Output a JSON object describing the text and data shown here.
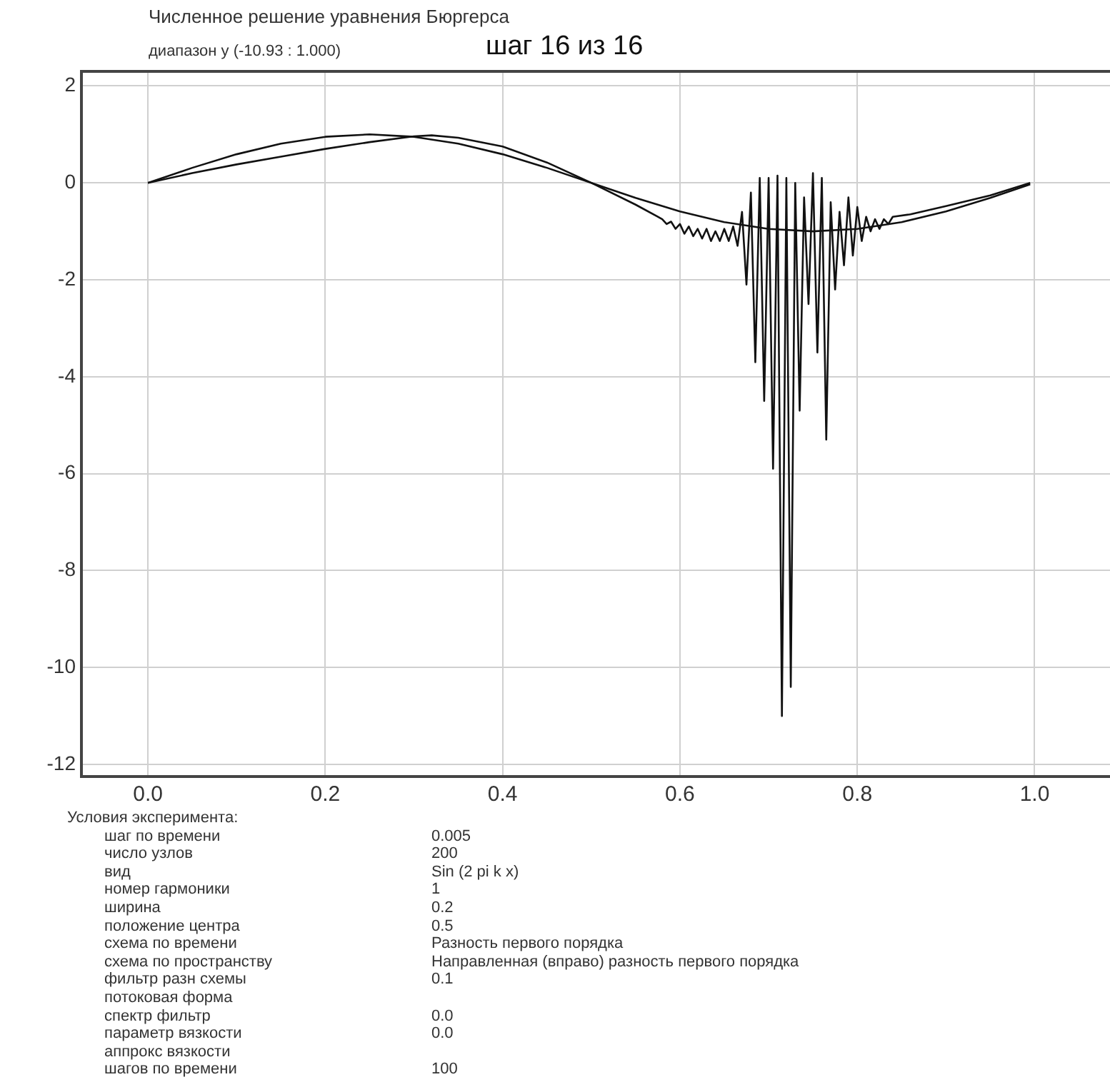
{
  "chart_data": {
    "type": "line",
    "title": "Численное решение уравнения Бюргерса",
    "subtitle": "шаг 16 из 16",
    "annotations": [
      "диапазон у (-10.93 : 1.000)",
      "Условия эксперимента:",
      "шаг по времени\t0.005",
      "число узлов\t200",
      "вид\tSin (2 pi k x)",
      "номер гармоники\t1",
      "ширина\t0.2",
      "положение центра\t0.5",
      "схема по времени\tРазность первого порядка",
      "схема по пространству\tНаправленная (вправо) разность первого порядка",
      "фильтр разн схемы\t0.1",
      "потоковая форма\t",
      "спектр фильтр\t0.0",
      "параметр вязкости\t0.0",
      "аппрокс вязкости\t",
      "шагов по времени\t100"
    ],
    "xlim": [
      -0.075,
      1.085
    ],
    "xticks": [
      {
        "value": 0,
        "label": "0.0"
      },
      0.2,
      0.4,
      0.6,
      0.8,
      {
        "value": 1,
        "label": "1.0"
      }
    ],
    "ylim": [
      -12.25,
      2.3
    ],
    "yticks": [
      2,
      0,
      -2,
      -4,
      -6,
      -8,
      -10,
      -12
    ],
    "grid": true,
    "marker": "none",
    "line_style": "solid",
    "series": [
      {
        "color": "#111111",
        "x": [
          0,
          0.05,
          0.1,
          0.15,
          0.2,
          0.25,
          0.3,
          0.35,
          0.4,
          0.45,
          0.5,
          0.55,
          0.6,
          0.65,
          0.7,
          0.75,
          0.8,
          0.85,
          0.9,
          0.95,
          0.995
        ],
        "values": [
          0,
          0.31,
          0.59,
          0.81,
          0.95,
          1.0,
          0.95,
          0.81,
          0.59,
          0.31,
          0,
          -0.31,
          -0.59,
          -0.81,
          -0.95,
          -1.0,
          -0.95,
          -0.81,
          -0.59,
          -0.31,
          -0.03
        ]
      },
      {
        "color": "#111111",
        "x": [
          0,
          0.05,
          0.1,
          0.15,
          0.2,
          0.25,
          0.3,
          0.32,
          0.35,
          0.4,
          0.45,
          0.5,
          0.55,
          0.575,
          0.58,
          0.585,
          0.59,
          0.595,
          0.6,
          0.605,
          0.61,
          0.615,
          0.62,
          0.625,
          0.63,
          0.635,
          0.64,
          0.645,
          0.65,
          0.655,
          0.66,
          0.665,
          0.67,
          0.675,
          0.68,
          0.685,
          0.69,
          0.695,
          0.7,
          0.705,
          0.71,
          0.715,
          0.72,
          0.725,
          0.73,
          0.735,
          0.74,
          0.745,
          0.75,
          0.755,
          0.76,
          0.765,
          0.77,
          0.775,
          0.78,
          0.785,
          0.79,
          0.795,
          0.8,
          0.805,
          0.81,
          0.815,
          0.82,
          0.825,
          0.83,
          0.835,
          0.84,
          0.86,
          0.9,
          0.95,
          0.995
        ],
        "values": [
          0,
          0.2,
          0.38,
          0.54,
          0.7,
          0.84,
          0.96,
          0.98,
          0.93,
          0.75,
          0.42,
          0,
          -0.45,
          -0.7,
          -0.75,
          -0.85,
          -0.8,
          -0.95,
          -0.85,
          -1.05,
          -0.9,
          -1.1,
          -0.95,
          -1.15,
          -0.95,
          -1.2,
          -1.0,
          -1.2,
          -0.95,
          -1.2,
          -0.9,
          -1.3,
          -0.6,
          -2.1,
          -0.2,
          -3.7,
          0.1,
          -4.5,
          0.1,
          -5.9,
          0.15,
          -11.0,
          0.1,
          -10.4,
          0.0,
          -4.7,
          -0.3,
          -2.5,
          0.2,
          -3.5,
          0.1,
          -5.3,
          -0.4,
          -2.2,
          -0.6,
          -1.7,
          -0.3,
          -1.5,
          -0.5,
          -1.2,
          -0.7,
          -1.0,
          -0.75,
          -0.95,
          -0.75,
          -0.85,
          -0.7,
          -0.65,
          -0.48,
          -0.26,
          0
        ]
      }
    ]
  }
}
